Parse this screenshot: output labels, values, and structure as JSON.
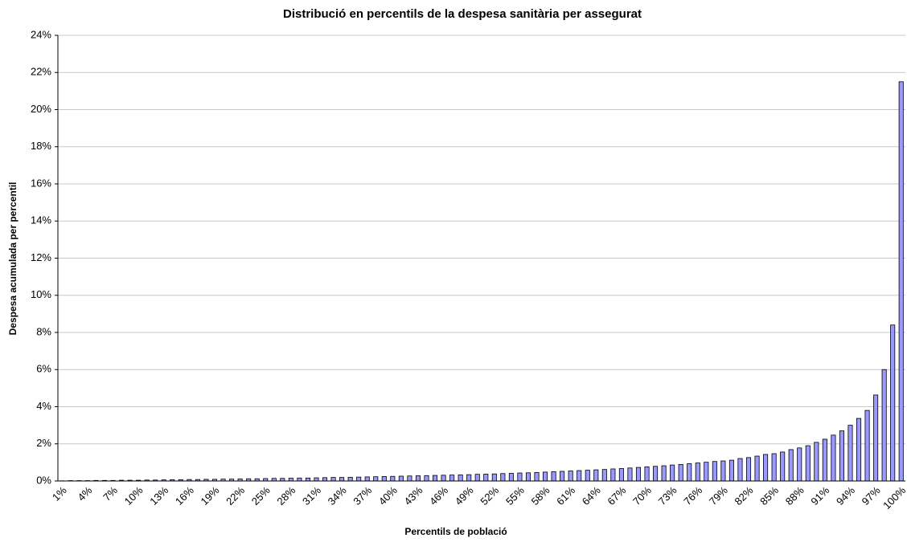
{
  "chart_data": {
    "type": "bar",
    "title": "Distribució en percentils de la despesa sanitària per assegurat",
    "x_label": "Percentils de població",
    "y_label": "Despesa acumulada per percentil",
    "categories": [
      "1%",
      null,
      null,
      "4%",
      null,
      null,
      "7%",
      null,
      null,
      "10%",
      null,
      null,
      "13%",
      null,
      null,
      "16%",
      null,
      null,
      "19%",
      null,
      null,
      "22%",
      null,
      null,
      "25%",
      null,
      null,
      "28%",
      null,
      null,
      "31%",
      null,
      null,
      "34%",
      null,
      null,
      "37%",
      null,
      null,
      "40%",
      null,
      null,
      "43%",
      null,
      null,
      "46%",
      null,
      null,
      "49%",
      null,
      null,
      "52%",
      null,
      null,
      "55%",
      null,
      null,
      "58%",
      null,
      null,
      "61%",
      null,
      null,
      "64%",
      null,
      null,
      "67%",
      null,
      null,
      "70%",
      null,
      null,
      "73%",
      null,
      null,
      "76%",
      null,
      null,
      "79%",
      null,
      null,
      "82%",
      null,
      null,
      "85%",
      null,
      null,
      "88%",
      null,
      null,
      "91%",
      null,
      null,
      "94%",
      null,
      null,
      "97%",
      null,
      null,
      "100%"
    ],
    "values": [
      0.01,
      0.02,
      0.02,
      0.02,
      0.03,
      0.03,
      0.03,
      0.04,
      0.04,
      0.04,
      0.05,
      0.05,
      0.06,
      0.07,
      0.07,
      0.08,
      0.08,
      0.09,
      0.09,
      0.1,
      0.1,
      0.11,
      0.12,
      0.12,
      0.13,
      0.14,
      0.14,
      0.15,
      0.16,
      0.16,
      0.17,
      0.18,
      0.19,
      0.19,
      0.2,
      0.21,
      0.22,
      0.23,
      0.24,
      0.25,
      0.26,
      0.27,
      0.28,
      0.29,
      0.3,
      0.31,
      0.32,
      0.33,
      0.34,
      0.36,
      0.37,
      0.38,
      0.4,
      0.41,
      0.43,
      0.44,
      0.46,
      0.48,
      0.5,
      0.52,
      0.54,
      0.56,
      0.58,
      0.6,
      0.62,
      0.65,
      0.67,
      0.7,
      0.73,
      0.76,
      0.79,
      0.82,
      0.86,
      0.89,
      0.93,
      0.97,
      1.01,
      1.05,
      1.08,
      1.12,
      1.21,
      1.26,
      1.34,
      1.43,
      1.47,
      1.56,
      1.69,
      1.78,
      1.9,
      2.08,
      2.25,
      2.47,
      2.7,
      3.0,
      3.37,
      3.8,
      4.63,
      6.0,
      8.4,
      21.5
    ],
    "color": "#9999ff",
    "ylim": [
      0,
      24
    ],
    "yticks": [
      {
        "value": 0,
        "label": "0%"
      },
      {
        "value": 2,
        "label": "2%"
      },
      {
        "value": 4,
        "label": "4%"
      },
      {
        "value": 6,
        "label": "6%"
      },
      {
        "value": 8,
        "label": "8%"
      },
      {
        "value": 10,
        "label": "10%"
      },
      {
        "value": 12,
        "label": "12%"
      },
      {
        "value": 14,
        "label": "14%"
      },
      {
        "value": 16,
        "label": "16%"
      },
      {
        "value": 18,
        "label": "18%"
      },
      {
        "value": 20,
        "label": "20%"
      },
      {
        "value": 22,
        "label": "22%"
      },
      {
        "value": 24,
        "label": "24%"
      }
    ],
    "grid": true
  }
}
